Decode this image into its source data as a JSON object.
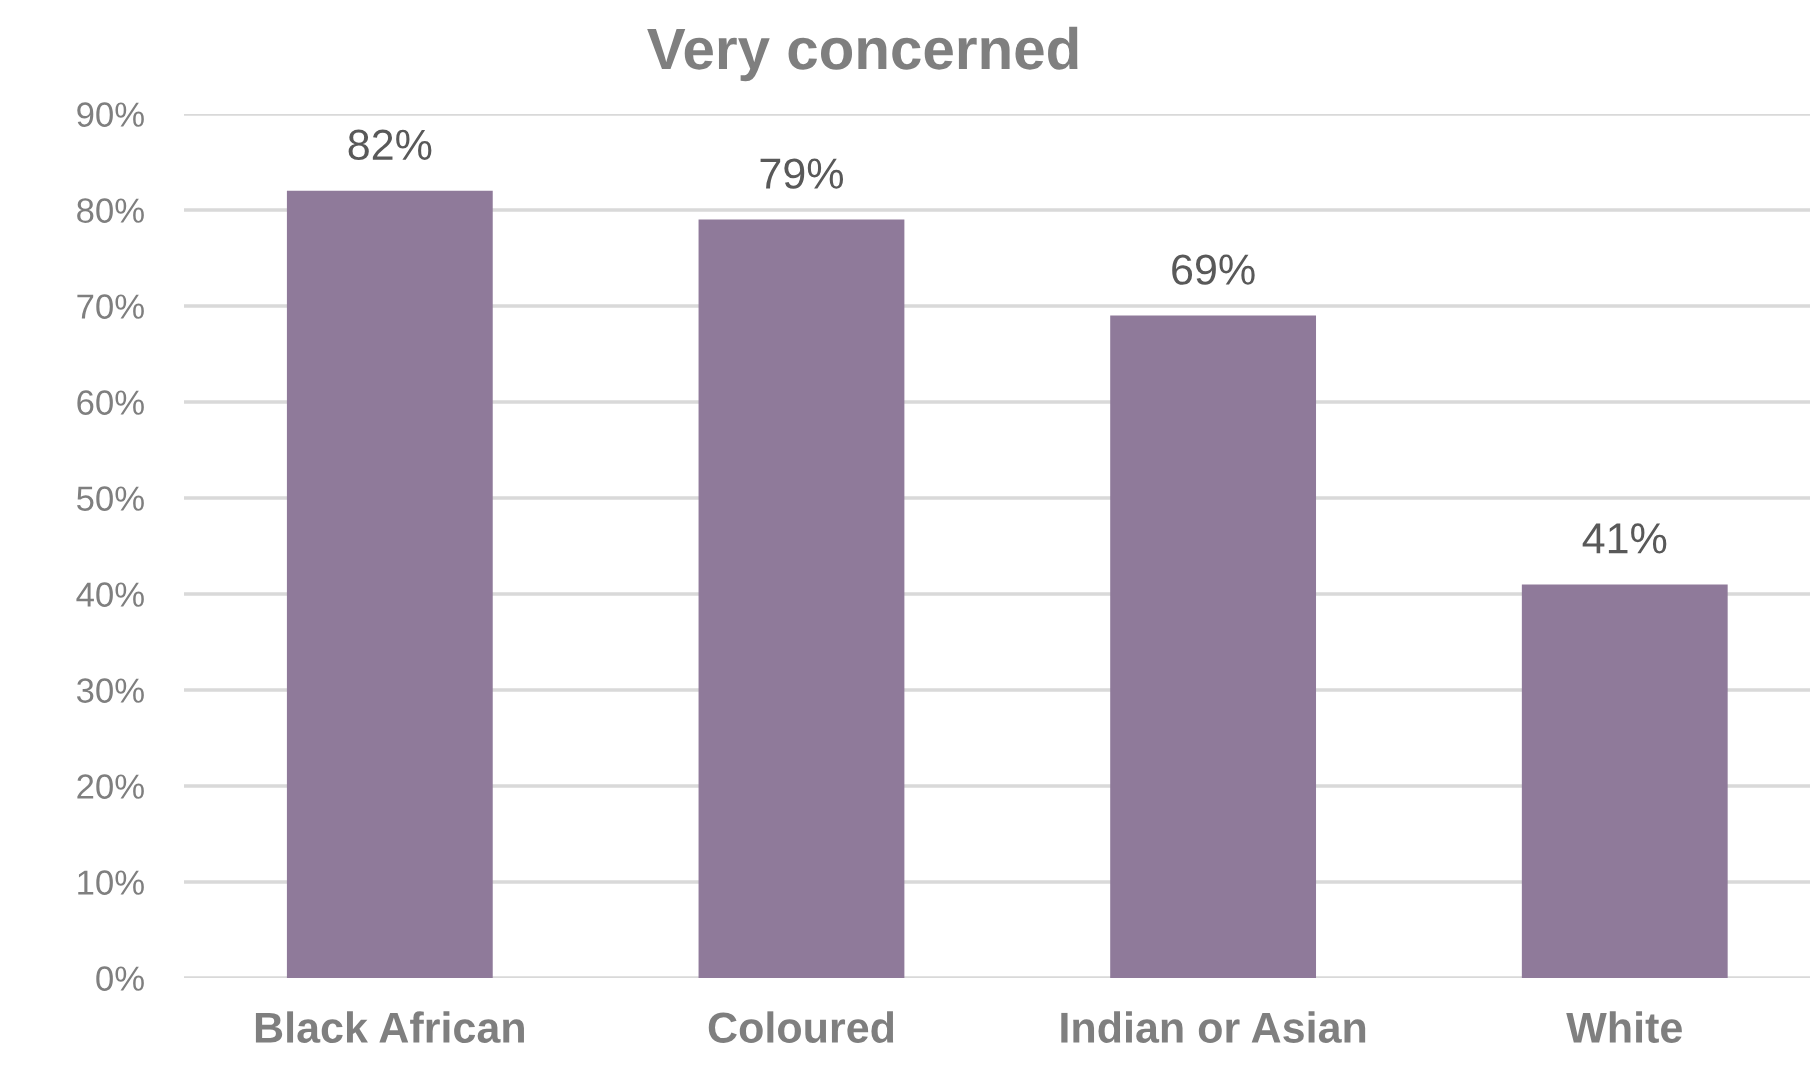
{
  "chart_data": {
    "type": "bar",
    "title": "Very concerned",
    "categories": [
      "Black African",
      "Coloured",
      "Indian or Asian",
      "White"
    ],
    "values": [
      82,
      79,
      69,
      41
    ],
    "value_labels": [
      "82%",
      "79%",
      "69%",
      "41%"
    ],
    "color": "#8f7a9a",
    "ylim": [
      0,
      90
    ],
    "yticks": [
      {
        "value": 0,
        "label": "0%"
      },
      {
        "value": 10,
        "label": "10%"
      },
      {
        "value": 20,
        "label": "20%"
      },
      {
        "value": 30,
        "label": "30%"
      },
      {
        "value": 40,
        "label": "40%"
      },
      {
        "value": 50,
        "label": "50%"
      },
      {
        "value": 60,
        "label": "60%"
      },
      {
        "value": 70,
        "label": "70%"
      },
      {
        "value": 80,
        "label": "80%"
      },
      {
        "value": 90,
        "label": "90%"
      }
    ],
    "grid": "y",
    "legend": false
  }
}
